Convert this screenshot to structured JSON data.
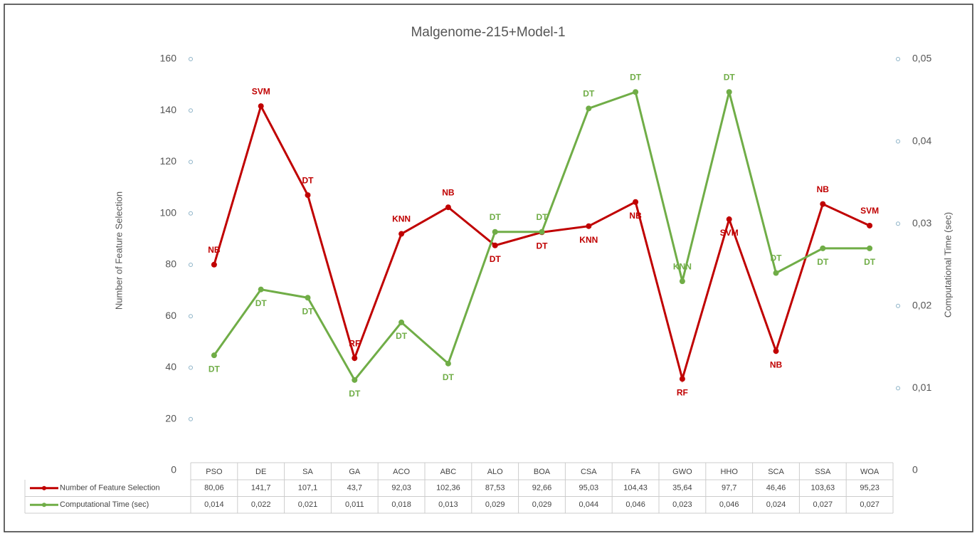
{
  "chart_data": {
    "type": "line",
    "title": "Malgenome-215+Model-1",
    "y_label": "Number of Feature Selection",
    "y2_label": "Computational Time (sec)",
    "categories": [
      "PSO",
      "DE",
      "SA",
      "GA",
      "ACO",
      "ABC",
      "ALO",
      "BOA",
      "CSA",
      "FA",
      "GWO",
      "HHO",
      "SCA",
      "SSA",
      "WOA"
    ],
    "series": [
      {
        "name": "Number of Feature Selection",
        "color": "#c00000",
        "values": [
          80.06,
          141.7,
          107.1,
          43.7,
          92.03,
          102.36,
          87.53,
          92.66,
          95.03,
          104.43,
          35.64,
          97.7,
          46.46,
          103.63,
          95.23
        ],
        "value_labels": [
          "80,06",
          "141,7",
          "107,1",
          "43,7",
          "92,03",
          "102,36",
          "87,53",
          "92,66",
          "95,03",
          "104,43",
          "35,64",
          "97,7",
          "46,46",
          "103,63",
          "95,23"
        ],
        "point_labels": [
          "NB",
          "SVM",
          "DT",
          "RF",
          "KNN",
          "NB",
          "DT",
          "DT",
          "KNN",
          "NB",
          "RF",
          "SVM",
          "NB",
          "NB",
          "SVM"
        ]
      },
      {
        "name": "Computational Time (sec)",
        "color": "#70ad47",
        "axis": "y2",
        "values": [
          0.014,
          0.022,
          0.021,
          0.011,
          0.018,
          0.013,
          0.029,
          0.029,
          0.044,
          0.046,
          0.023,
          0.046,
          0.024,
          0.027,
          0.027
        ],
        "value_labels": [
          "0,014",
          "0,022",
          "0,021",
          "0,011",
          "0,018",
          "0,013",
          "0,029",
          "0,029",
          "0,044",
          "0,046",
          "0,023",
          "0,046",
          "0,024",
          "0,027",
          "0,027"
        ],
        "point_labels": [
          "DT",
          "DT",
          "DT",
          "DT",
          "DT",
          "DT",
          "DT",
          "DT",
          "DT",
          "DT",
          "KNN",
          "DT",
          "DT",
          "DT",
          "DT"
        ]
      }
    ],
    "ylim": [
      0,
      160
    ],
    "yticks": [
      0,
      20,
      40,
      60,
      80,
      100,
      120,
      140,
      160
    ],
    "y2lim": [
      0,
      0.05
    ],
    "y2ticks": [
      0,
      {
        "value": 0.01,
        "label": "0,01"
      },
      {
        "value": 0.02,
        "label": "0,02"
      },
      {
        "value": 0.03,
        "label": "0,03"
      },
      {
        "value": 0.04,
        "label": "0,04"
      },
      {
        "value": 0.05,
        "label": "0,05"
      }
    ]
  }
}
